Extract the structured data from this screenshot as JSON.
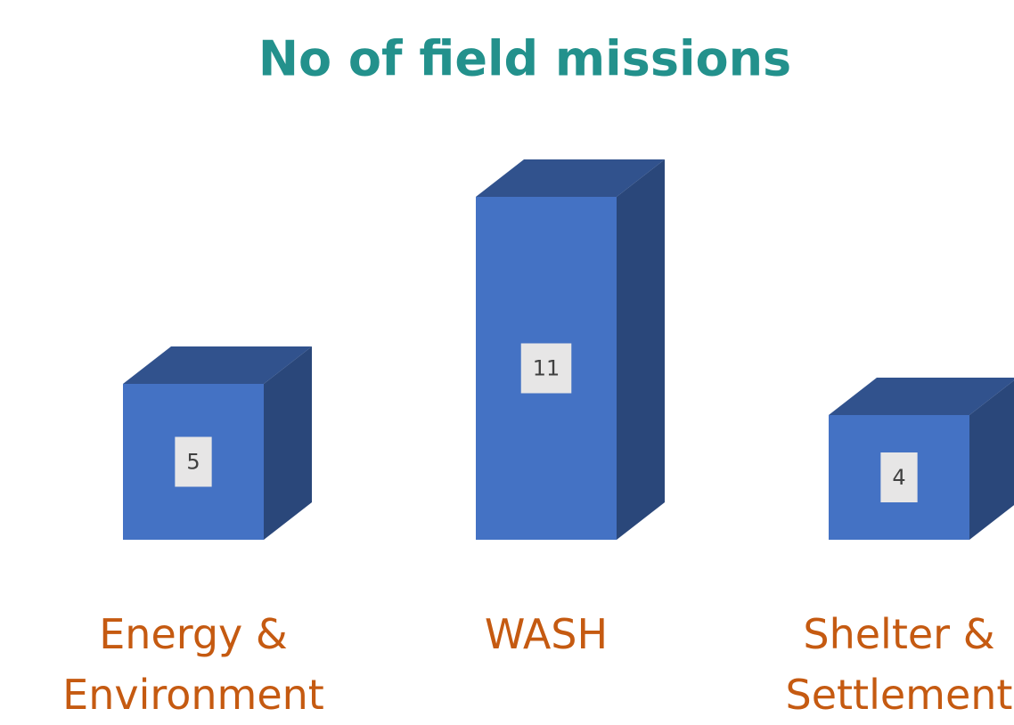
{
  "chart_data": {
    "type": "bar3d",
    "title": "No of field missions",
    "categories": [
      "Energy & Environment",
      "WASH",
      "Shelter & Settlement"
    ],
    "values": [
      5,
      11,
      4
    ],
    "color": "#4472c4"
  }
}
